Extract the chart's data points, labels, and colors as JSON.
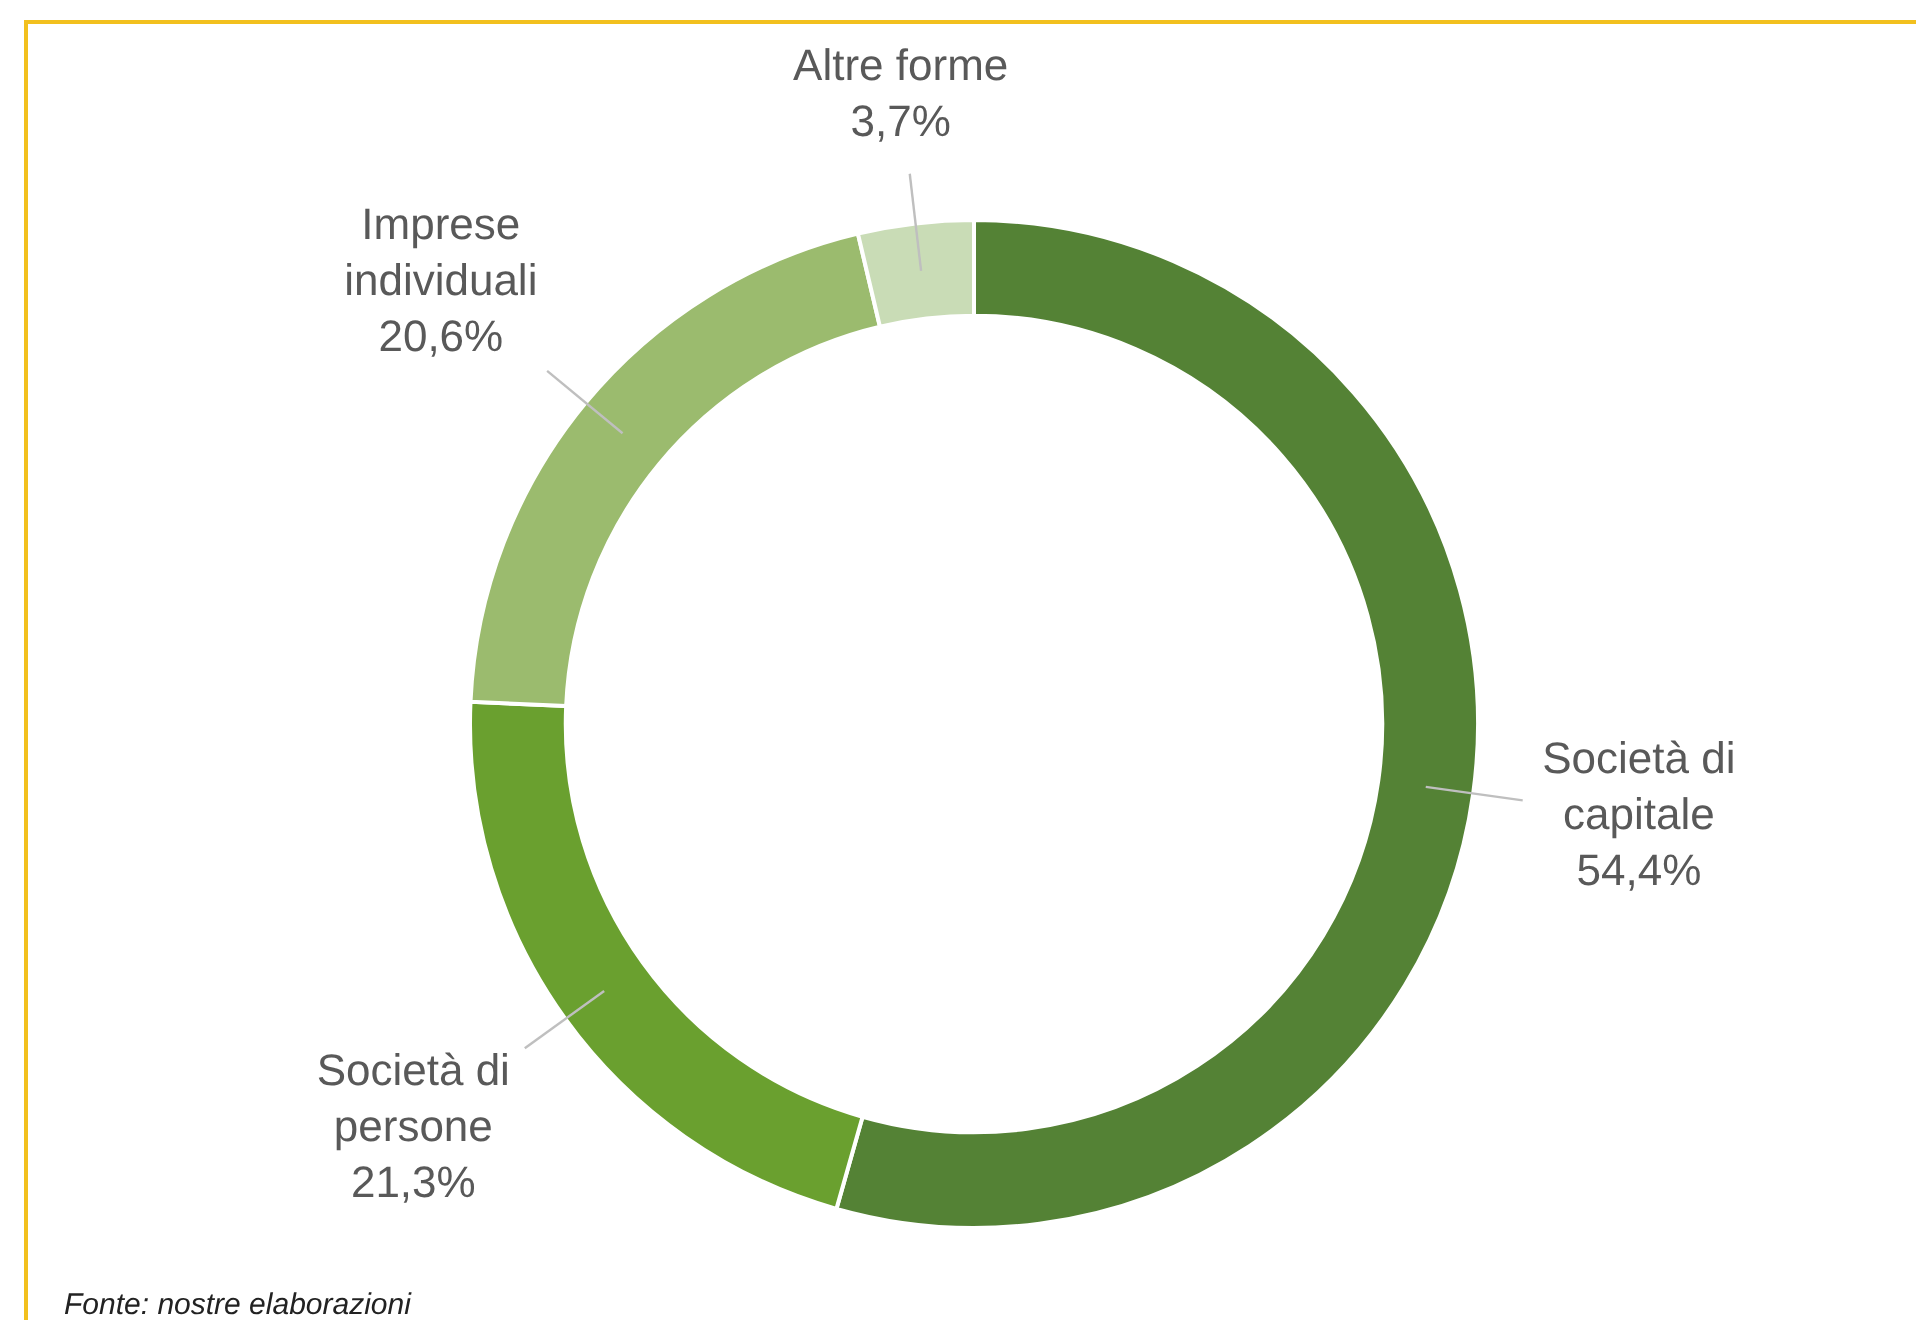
{
  "chart_data": {
    "type": "donut",
    "categories": [
      "Società di capitale",
      "Società di persone",
      "Imprese individuali",
      "Altre forme"
    ],
    "values": [
      54.4,
      21.3,
      20.6,
      3.7
    ],
    "colors": [
      "#548235",
      "#6aa02f",
      "#9bbb6e",
      "#c9dcb6"
    ],
    "value_labels": [
      "54,4%",
      "21,3%",
      "20,6%",
      "3,7%"
    ],
    "legend": false,
    "annotations": [
      "Fonte: nostre elaborazioni"
    ]
  }
}
